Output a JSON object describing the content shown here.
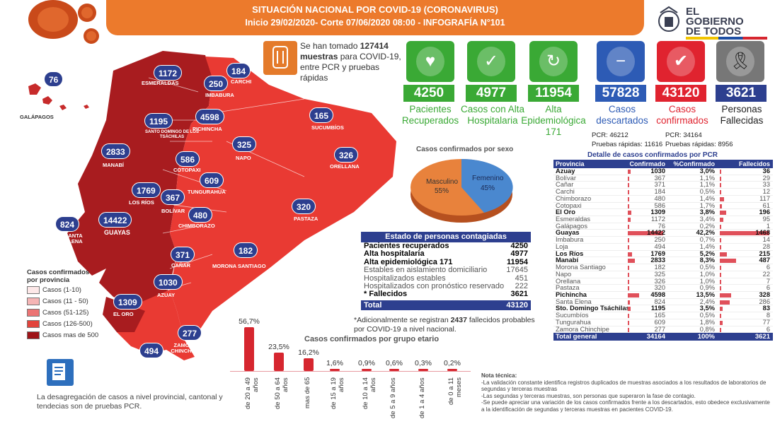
{
  "header": {
    "title": "SITUACIÓN NACIONAL POR  COVID-19 (CORONAVIRUS)",
    "subtitle": "Inicio 29/02/2020- Corte 07/06/2020 08:00  - INFOGRAFÍA N°101"
  },
  "logo": {
    "line1": "EL",
    "line2": "GOBIERNO",
    "line3": "DE TODOS"
  },
  "muestras": {
    "pre": "Se han tomado",
    "count": "127414",
    "bold": "muestras",
    "post": "para COVID-19, entre PCR y pruebas rápidas"
  },
  "stats": [
    {
      "value": "4250",
      "label": "Pacientes Recuperados",
      "color": "#3aa935",
      "icon": "hands-heart-icon"
    },
    {
      "value": "4977",
      "label": "Casos con Alta Hospitalaria",
      "color": "#3aa935",
      "icon": "person-check-icon"
    },
    {
      "value": "11954",
      "label": "Alta Epidemiológica 171",
      "color": "#3aa935",
      "icon": "recycle-icon"
    },
    {
      "value": "57828",
      "label": "Casos descartados",
      "color": "#2d5bb5",
      "icon": "minus-circle-icon"
    },
    {
      "value": "43120",
      "label": "Casos confirmados",
      "color": "#e0232f",
      "icon": "check-circle-icon"
    },
    {
      "value": "3621",
      "label": "Personas Fallecidas",
      "color": "#222222",
      "icon": "ribbon-icon"
    }
  ],
  "pcr": {
    "descartados_pcr": "PCR: 46212",
    "descartados_rapidas": "Pruebas rápidas: 11616",
    "confirmados_pcr": "PCR: 34164",
    "confirmados_rapidas": "Pruebas rápidas: 8956"
  },
  "map_labels": [
    {
      "value": "76",
      "name": "GALÁPAGOS"
    },
    {
      "value": "1172",
      "name": "ESMERALDAS"
    },
    {
      "value": "184",
      "name": "CARCHI"
    },
    {
      "value": "250",
      "name": "IMBABURA"
    },
    {
      "value": "165",
      "name": "SUCUMBÍOS"
    },
    {
      "value": "1195",
      "name": "SANTO DOMINGO DE LOS TSÁCHILAS"
    },
    {
      "value": "4598",
      "name": "PICHINCHA"
    },
    {
      "value": "2833",
      "name": "MANABÍ"
    },
    {
      "value": "586",
      "name": "COTOPAXI"
    },
    {
      "value": "325",
      "name": "NAPO"
    },
    {
      "value": "326",
      "name": "ORELLANA"
    },
    {
      "value": "609",
      "name": "TUNGURAHUA"
    },
    {
      "value": "1769",
      "name": "LOS RÍOS"
    },
    {
      "value": "367",
      "name": "BOLÍVAR"
    },
    {
      "value": "480",
      "name": "CHIMBORAZO"
    },
    {
      "value": "320",
      "name": "PASTAZA"
    },
    {
      "value": "824",
      "name": "SANTA ELENA"
    },
    {
      "value": "14422",
      "name": "GUAYAS"
    },
    {
      "value": "371",
      "name": "CAÑAR"
    },
    {
      "value": "182",
      "name": "MORONA SANTIAGO"
    },
    {
      "value": "1030",
      "name": "AZUAY"
    },
    {
      "value": "1309",
      "name": "EL ORO"
    },
    {
      "value": "277",
      "name": "ZAMORA CHINCHIPE"
    },
    {
      "value": "494",
      "name": "LOJA"
    }
  ],
  "legend": {
    "title": "Casos confirmados por provincia",
    "items": [
      {
        "label": "Casos (1-10)",
        "color": "#fde8e8"
      },
      {
        "label": "Casos (11 - 50)",
        "color": "#f5b5b5"
      },
      {
        "label": "Casos (51-125)",
        "color": "#ec7474"
      },
      {
        "label": "Casos (126-500)",
        "color": "#e2443c"
      },
      {
        "label": "Casos mas de 500",
        "color": "#9e1418"
      }
    ]
  },
  "sex_chart": {
    "title": "Casos confirmados por sexo",
    "male_label": "Masculino",
    "male_pct": "55%",
    "female_label": "Femenino",
    "female_pct": "45%"
  },
  "estado": {
    "title": "Estado de personas contagiadas",
    "rows": [
      {
        "label": "Pacientes recuperados",
        "value": "4250",
        "style": "b"
      },
      {
        "label": "Alta hospitalaria",
        "value": "4977",
        "style": "b"
      },
      {
        "label": "Alta epidemiológica 171",
        "value": "11954",
        "style": "b"
      },
      {
        "label": "Estables en aislamiento domiciliario",
        "value": "17645",
        "style": "g"
      },
      {
        "label": "Hospitalizados estables",
        "value": "451",
        "style": "g"
      },
      {
        "label": "Hospitalizados con pronóstico reservado",
        "value": "222",
        "style": "g"
      },
      {
        "label": "* Fallecidos",
        "value": "3621",
        "style": "b"
      }
    ],
    "total_label": "Total",
    "total_value": "43120",
    "note_pre": "*Adicionalmente se registran",
    "note_num": "2437",
    "note_post": "fallecidos probables por COVID-19 a nivel nacional."
  },
  "chart_data": {
    "type": "bar",
    "title": "Casos confirmados por grupo etario",
    "categories": [
      "de 20 a 49 años",
      "de 50 a 64 años",
      "mas de 65",
      "de 15 a 19 años",
      "de 10 a 14 años",
      "de 5 a 9 años",
      "de 1 a 4 años",
      "de 0 a 11 meses"
    ],
    "values": [
      56.7,
      23.5,
      16.2,
      1.6,
      0.9,
      0.6,
      0.3,
      0.2
    ],
    "labels": [
      "56,7%",
      "23,5%",
      "16,2%",
      "1,6%",
      "0,9%",
      "0,6%",
      "0,3%",
      "0,2%"
    ]
  },
  "provinces": {
    "title": "Detalle de casos confirmados por PCR",
    "headers": [
      "Provincia",
      "Confirmado",
      "%Confirmado",
      "Fallecidos"
    ],
    "rows": [
      {
        "name": "Azuay",
        "conf": "1030",
        "pct": "3,0%",
        "fall": "36",
        "b": true,
        "c": 1030,
        "p": 3.0,
        "f": 36
      },
      {
        "name": "Bolívar",
        "conf": "367",
        "pct": "1,1%",
        "fall": "29",
        "b": false,
        "c": 367,
        "p": 1.1,
        "f": 29
      },
      {
        "name": "Cañar",
        "conf": "371",
        "pct": "1,1%",
        "fall": "33",
        "b": false,
        "c": 371,
        "p": 1.1,
        "f": 33
      },
      {
        "name": "Carchi",
        "conf": "184",
        "pct": "0,5%",
        "fall": "12",
        "b": false,
        "c": 184,
        "p": 0.5,
        "f": 12
      },
      {
        "name": "Chimborazo",
        "conf": "480",
        "pct": "1,4%",
        "fall": "117",
        "b": false,
        "c": 480,
        "p": 1.4,
        "f": 117
      },
      {
        "name": "Cotopaxi",
        "conf": "586",
        "pct": "1,7%",
        "fall": "61",
        "b": false,
        "c": 586,
        "p": 1.7,
        "f": 61
      },
      {
        "name": "El Oro",
        "conf": "1309",
        "pct": "3,8%",
        "fall": "196",
        "b": true,
        "c": 1309,
        "p": 3.8,
        "f": 196
      },
      {
        "name": "Esmeraldas",
        "conf": "1172",
        "pct": "3,4%",
        "fall": "95",
        "b": false,
        "c": 1172,
        "p": 3.4,
        "f": 95
      },
      {
        "name": "Galápagos",
        "conf": "76",
        "pct": "0,2%",
        "fall": "1",
        "b": false,
        "c": 76,
        "p": 0.2,
        "f": 1
      },
      {
        "name": "Guayas",
        "conf": "14422",
        "pct": "42,2%",
        "fall": "1468",
        "b": true,
        "c": 14422,
        "p": 42.2,
        "f": 1468
      },
      {
        "name": "Imbabura",
        "conf": "250",
        "pct": "0,7%",
        "fall": "14",
        "b": false,
        "c": 250,
        "p": 0.7,
        "f": 14
      },
      {
        "name": "Loja",
        "conf": "494",
        "pct": "1,4%",
        "fall": "28",
        "b": false,
        "c": 494,
        "p": 1.4,
        "f": 28
      },
      {
        "name": "Los Ríos",
        "conf": "1769",
        "pct": "5,2%",
        "fall": "215",
        "b": true,
        "c": 1769,
        "p": 5.2,
        "f": 215
      },
      {
        "name": "Manabí",
        "conf": "2833",
        "pct": "8,3%",
        "fall": "487",
        "b": true,
        "c": 2833,
        "p": 8.3,
        "f": 487
      },
      {
        "name": "Morona Santiago",
        "conf": "182",
        "pct": "0,5%",
        "fall": "6",
        "b": false,
        "c": 182,
        "p": 0.5,
        "f": 6
      },
      {
        "name": "Napo",
        "conf": "325",
        "pct": "1,0%",
        "fall": "22",
        "b": false,
        "c": 325,
        "p": 1.0,
        "f": 22
      },
      {
        "name": "Orellana",
        "conf": "326",
        "pct": "1,0%",
        "fall": "7",
        "b": false,
        "c": 326,
        "p": 1.0,
        "f": 7
      },
      {
        "name": "Pastaza",
        "conf": "320",
        "pct": "0,9%",
        "fall": "6",
        "b": false,
        "c": 320,
        "p": 0.9,
        "f": 6
      },
      {
        "name": "Pichincha",
        "conf": "4598",
        "pct": "13,5%",
        "fall": "328",
        "b": true,
        "c": 4598,
        "p": 13.5,
        "f": 328
      },
      {
        "name": "Santa Elena",
        "conf": "824",
        "pct": "2,4%",
        "fall": "286",
        "b": false,
        "c": 824,
        "p": 2.4,
        "f": 286
      },
      {
        "name": "Sto. Domingo Tsáchilas",
        "conf": "1195",
        "pct": "3,5%",
        "fall": "83",
        "b": true,
        "c": 1195,
        "p": 3.5,
        "f": 83
      },
      {
        "name": "Sucumbíos",
        "conf": "165",
        "pct": "0,5%",
        "fall": "8",
        "b": false,
        "c": 165,
        "p": 0.5,
        "f": 8
      },
      {
        "name": "Tungurahua",
        "conf": "609",
        "pct": "1,8%",
        "fall": "77",
        "b": false,
        "c": 609,
        "p": 1.8,
        "f": 77
      },
      {
        "name": "Zamora Chinchipe",
        "conf": "277",
        "pct": "0,8%",
        "fall": "6",
        "b": false,
        "c": 277,
        "p": 0.8,
        "f": 6
      }
    ],
    "total": {
      "label": "Total general",
      "conf": "34164",
      "pct": "100%",
      "fall": "3621"
    }
  },
  "nota_tecnica": {
    "title": "Nota técnica:",
    "lines": [
      "-La validación constante identifica registros duplicados de muestras asociados a los resultados de laboratorios de segundas y terceras muestras",
      "-Las segundas y terceras muestras, son personas que superaron la fase de contagio.",
      "-Se puede apreciar una variación de los casos confirmados frente a los descartados, esto obedece exclusivamente a la identificación de segundas y terceras muestras en pacientes COVID-19."
    ]
  },
  "bottom_note": "La desagregación de casos a nivel provincial, cantonal y tendecias son de pruebas PCR."
}
